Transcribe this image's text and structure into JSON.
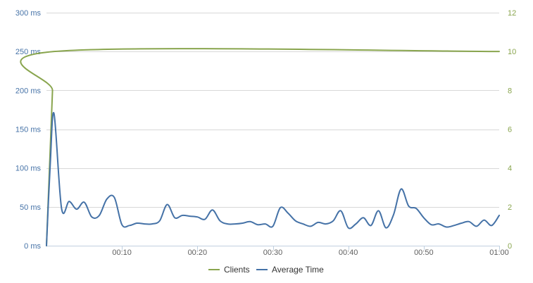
{
  "chart_data": {
    "type": "line",
    "title": "",
    "xlabel": "",
    "ylabel": "",
    "x_ticks": [
      "00:10",
      "00:20",
      "00:30",
      "00:40",
      "00:50",
      "01:00"
    ],
    "x_tick_seconds": [
      10,
      20,
      30,
      40,
      50,
      60
    ],
    "xlim": [
      0,
      60
    ],
    "y_left": {
      "ticks": [
        "0 ms",
        "50 ms",
        "100 ms",
        "150 ms",
        "200 ms",
        "250 ms",
        "300 ms"
      ],
      "tick_values": [
        0,
        50,
        100,
        150,
        200,
        250,
        300
      ],
      "ylim": [
        0,
        300
      ],
      "color": "#4572a7"
    },
    "y_right": {
      "ticks": [
        "0",
        "2",
        "4",
        "6",
        "8",
        "10",
        "12"
      ],
      "tick_values": [
        0,
        2,
        4,
        6,
        8,
        10,
        12
      ],
      "ylim": [
        0,
        12
      ],
      "color": "#89a54e"
    },
    "grid": true,
    "legend_position": "bottom-center",
    "series": [
      {
        "name": "Clients",
        "axis": "right",
        "color": "#89a54e",
        "points": [
          [
            0,
            0
          ],
          [
            0.2,
            2
          ],
          [
            0.4,
            4
          ],
          [
            0.6,
            6
          ],
          [
            0.8,
            8
          ],
          [
            1.0,
            10
          ],
          [
            60,
            10
          ]
        ]
      },
      {
        "name": "Average Time",
        "axis": "left",
        "color": "#4572a7",
        "points": [
          [
            0,
            0
          ],
          [
            0.5,
            105
          ],
          [
            1,
            170
          ],
          [
            2,
            48
          ],
          [
            3,
            57
          ],
          [
            4,
            47
          ],
          [
            5,
            56
          ],
          [
            6,
            37
          ],
          [
            7,
            39
          ],
          [
            8,
            60
          ],
          [
            9,
            62
          ],
          [
            10,
            27
          ],
          [
            11,
            26
          ],
          [
            12,
            29
          ],
          [
            13,
            28
          ],
          [
            14,
            28
          ],
          [
            15,
            32
          ],
          [
            16,
            53
          ],
          [
            17,
            36
          ],
          [
            18,
            39
          ],
          [
            19,
            38
          ],
          [
            20,
            37
          ],
          [
            21,
            34
          ],
          [
            22,
            46
          ],
          [
            23,
            32
          ],
          [
            24,
            28
          ],
          [
            25,
            28
          ],
          [
            26,
            29
          ],
          [
            27,
            31
          ],
          [
            28,
            27
          ],
          [
            29,
            28
          ],
          [
            30,
            25
          ],
          [
            31,
            49
          ],
          [
            32,
            42
          ],
          [
            33,
            32
          ],
          [
            34,
            28
          ],
          [
            35,
            25
          ],
          [
            36,
            30
          ],
          [
            37,
            28
          ],
          [
            38,
            32
          ],
          [
            39,
            45
          ],
          [
            40,
            23
          ],
          [
            41,
            28
          ],
          [
            42,
            36
          ],
          [
            43,
            26
          ],
          [
            44,
            45
          ],
          [
            45,
            23
          ],
          [
            46,
            40
          ],
          [
            47,
            73
          ],
          [
            48,
            51
          ],
          [
            49,
            48
          ],
          [
            50,
            36
          ],
          [
            51,
            27
          ],
          [
            52,
            28
          ],
          [
            53,
            24
          ],
          [
            54,
            26
          ],
          [
            55,
            29
          ],
          [
            56,
            31
          ],
          [
            57,
            25
          ],
          [
            58,
            33
          ],
          [
            59,
            26
          ],
          [
            60,
            39
          ]
        ]
      }
    ]
  }
}
